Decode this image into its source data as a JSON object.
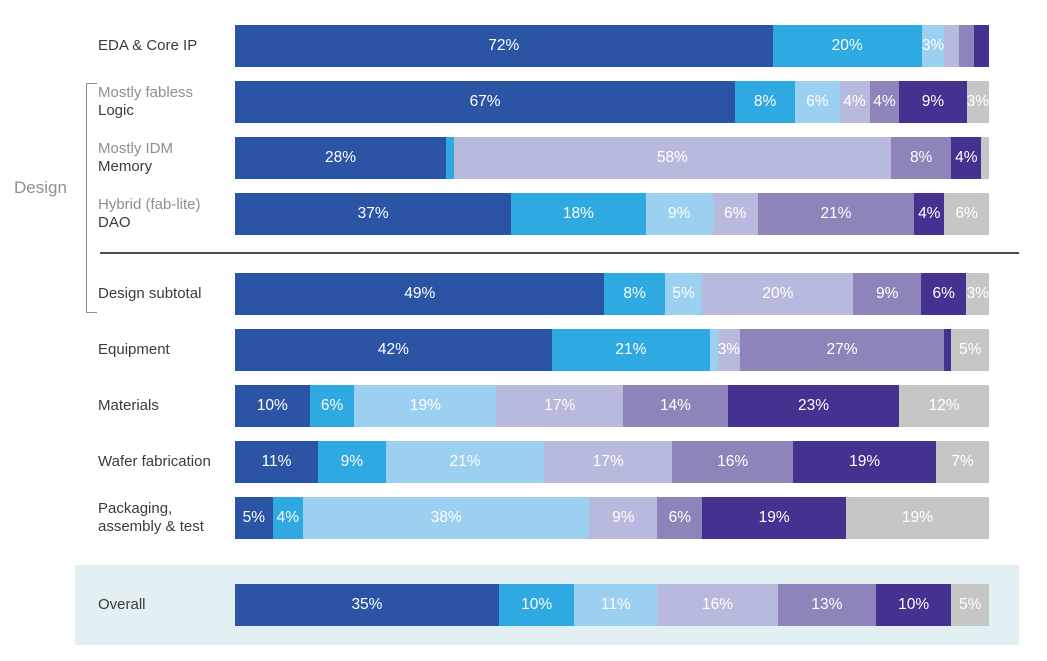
{
  "chart_data": {
    "type": "bar",
    "orientation": "horizontal-stacked",
    "unit": "%",
    "group_label": "Design",
    "legend": "none-visible",
    "colors": [
      "#2b54a5",
      "#2fa9e1",
      "#9bd0f0",
      "#b7badd",
      "#8f84ba",
      "#453190",
      "#c6c6c6"
    ],
    "highlight_band_color": "#e2eff3",
    "rows": [
      {
        "sublabel": null,
        "label": "EDA & Core IP",
        "label2": null,
        "highlighted": false,
        "segments": [
          {
            "v": 72,
            "c": 0,
            "t": "72%"
          },
          {
            "v": 20,
            "c": 1,
            "t": "20%"
          },
          {
            "v": 3,
            "c": 2,
            "t": "3%"
          },
          {
            "v": 2,
            "c": 3,
            "t": ""
          },
          {
            "v": 2,
            "c": 4,
            "t": ""
          },
          {
            "v": 2,
            "c": 5,
            "t": ""
          }
        ]
      },
      {
        "sublabel": "Mostly fabless",
        "label": "Logic",
        "label2": null,
        "highlighted": false,
        "segments": [
          {
            "v": 67,
            "c": 0,
            "t": "67%"
          },
          {
            "v": 8,
            "c": 1,
            "t": "8%"
          },
          {
            "v": 6,
            "c": 2,
            "t": "6%"
          },
          {
            "v": 4,
            "c": 3,
            "t": "4%"
          },
          {
            "v": 4,
            "c": 4,
            "t": "4%"
          },
          {
            "v": 9,
            "c": 5,
            "t": "9%"
          },
          {
            "v": 3,
            "c": 6,
            "t": "3%"
          }
        ]
      },
      {
        "sublabel": "Mostly IDM",
        "label": "Memory",
        "label2": null,
        "highlighted": false,
        "segments": [
          {
            "v": 28,
            "c": 0,
            "t": "28%"
          },
          {
            "v": 1,
            "c": 1,
            "t": ""
          },
          {
            "v": 58,
            "c": 3,
            "t": "58%"
          },
          {
            "v": 8,
            "c": 4,
            "t": "8%"
          },
          {
            "v": 4,
            "c": 5,
            "t": "4%"
          },
          {
            "v": 1,
            "c": 6,
            "t": ""
          }
        ]
      },
      {
        "sublabel": "Hybrid (fab-lite)",
        "label": "DAO",
        "label2": null,
        "highlighted": false,
        "segments": [
          {
            "v": 37,
            "c": 0,
            "t": "37%"
          },
          {
            "v": 18,
            "c": 1,
            "t": "18%"
          },
          {
            "v": 9,
            "c": 2,
            "t": "9%"
          },
          {
            "v": 6,
            "c": 3,
            "t": "6%"
          },
          {
            "v": 21,
            "c": 4,
            "t": "21%"
          },
          {
            "v": 4,
            "c": 5,
            "t": "4%"
          },
          {
            "v": 6,
            "c": 6,
            "t": "6%"
          }
        ]
      },
      {
        "sublabel": null,
        "label": "Design subtotal",
        "label2": null,
        "highlighted": false,
        "segments": [
          {
            "v": 49,
            "c": 0,
            "t": "49%"
          },
          {
            "v": 8,
            "c": 1,
            "t": "8%"
          },
          {
            "v": 5,
            "c": 2,
            "t": "5%"
          },
          {
            "v": 20,
            "c": 3,
            "t": "20%"
          },
          {
            "v": 9,
            "c": 4,
            "t": "9%"
          },
          {
            "v": 6,
            "c": 5,
            "t": "6%"
          },
          {
            "v": 3,
            "c": 6,
            "t": "3%"
          }
        ]
      },
      {
        "sublabel": null,
        "label": "Equipment",
        "label2": null,
        "highlighted": false,
        "segments": [
          {
            "v": 42,
            "c": 0,
            "t": "42%"
          },
          {
            "v": 21,
            "c": 1,
            "t": "21%"
          },
          {
            "v": 1,
            "c": 2,
            "t": ""
          },
          {
            "v": 3,
            "c": 3,
            "t": "3%"
          },
          {
            "v": 27,
            "c": 4,
            "t": "27%"
          },
          {
            "v": 1,
            "c": 5,
            "t": ""
          },
          {
            "v": 5,
            "c": 6,
            "t": "5%"
          }
        ]
      },
      {
        "sublabel": null,
        "label": "Materials",
        "label2": null,
        "highlighted": false,
        "segments": [
          {
            "v": 10,
            "c": 0,
            "t": "10%"
          },
          {
            "v": 6,
            "c": 1,
            "t": "6%"
          },
          {
            "v": 19,
            "c": 2,
            "t": "19%"
          },
          {
            "v": 17,
            "c": 3,
            "t": "17%"
          },
          {
            "v": 14,
            "c": 4,
            "t": "14%"
          },
          {
            "v": 23,
            "c": 5,
            "t": "23%"
          },
          {
            "v": 12,
            "c": 6,
            "t": "12%"
          }
        ]
      },
      {
        "sublabel": null,
        "label": "Wafer fabrication",
        "label2": null,
        "highlighted": false,
        "segments": [
          {
            "v": 11,
            "c": 0,
            "t": "11%"
          },
          {
            "v": 9,
            "c": 1,
            "t": "9%"
          },
          {
            "v": 21,
            "c": 2,
            "t": "21%"
          },
          {
            "v": 17,
            "c": 3,
            "t": "17%"
          },
          {
            "v": 16,
            "c": 4,
            "t": "16%"
          },
          {
            "v": 19,
            "c": 5,
            "t": "19%"
          },
          {
            "v": 7,
            "c": 6,
            "t": "7%"
          }
        ]
      },
      {
        "sublabel": null,
        "label": "Packaging,",
        "label2": "assembly & test",
        "highlighted": false,
        "segments": [
          {
            "v": 5,
            "c": 0,
            "t": "5%"
          },
          {
            "v": 4,
            "c": 1,
            "t": "4%"
          },
          {
            "v": 38,
            "c": 2,
            "t": "38%"
          },
          {
            "v": 9,
            "c": 3,
            "t": "9%"
          },
          {
            "v": 6,
            "c": 4,
            "t": "6%"
          },
          {
            "v": 19,
            "c": 5,
            "t": "19%"
          },
          {
            "v": 19,
            "c": 6,
            "t": "19%"
          }
        ]
      },
      {
        "sublabel": null,
        "label": "Overall",
        "label2": null,
        "highlighted": true,
        "segments": [
          {
            "v": 35,
            "c": 0,
            "t": "35%"
          },
          {
            "v": 10,
            "c": 1,
            "t": "10%"
          },
          {
            "v": 11,
            "c": 2,
            "t": "11%"
          },
          {
            "v": 16,
            "c": 3,
            "t": "16%"
          },
          {
            "v": 13,
            "c": 4,
            "t": "13%"
          },
          {
            "v": 10,
            "c": 5,
            "t": "10%"
          },
          {
            "v": 5,
            "c": 6,
            "t": "5%"
          }
        ]
      }
    ]
  }
}
